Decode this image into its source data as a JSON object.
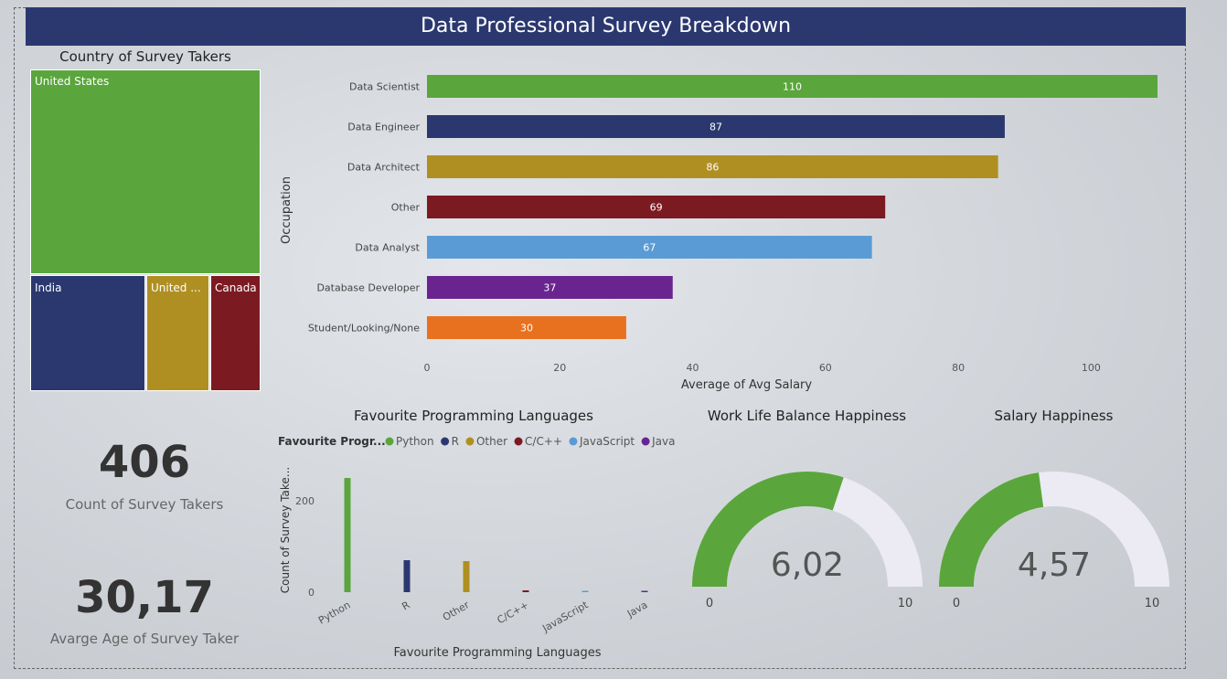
{
  "header": {
    "title": "Data Professional Survey Breakdown"
  },
  "colors": {
    "green": "#5aa63c",
    "navy": "#2b3870",
    "gold": "#b08f22",
    "maroon": "#7c1a22",
    "lightblue": "#5b9bd5",
    "purple": "#6a2490",
    "orange": "#e8711f",
    "gauge_bg": "#eceaf3"
  },
  "treemap": {
    "title": "Country of Survey Takers",
    "items": [
      {
        "label": "United States",
        "color": "#5aa63c"
      },
      {
        "label": "India",
        "color": "#2b3870"
      },
      {
        "label": "United ...",
        "color": "#b08f22"
      },
      {
        "label": "Canada",
        "color": "#7c1a22"
      }
    ]
  },
  "kpis": {
    "count": {
      "value": "406",
      "label": "Count of Survey Takers"
    },
    "age": {
      "value": "30,17",
      "label": "Avarge Age of Survey Taker"
    }
  },
  "chart_data": [
    {
      "type": "bar",
      "orientation": "horizontal",
      "categories": [
        "Data Scientist",
        "Data Engineer",
        "Data Architect",
        "Other",
        "Data Analyst",
        "Database Developer",
        "Student/Looking/None"
      ],
      "values": [
        110,
        87,
        86,
        69,
        67,
        37,
        30
      ],
      "colors": [
        "#5aa63c",
        "#2b3870",
        "#b08f22",
        "#7c1a22",
        "#5b9bd5",
        "#6a2490",
        "#e8711f"
      ],
      "xlabel": "Average of Avg Salary",
      "ylabel": "Occupation",
      "xlim": [
        0,
        110
      ],
      "xticks": [
        0,
        20,
        40,
        60,
        80,
        100
      ]
    },
    {
      "type": "bar",
      "title": "Favourite Programming Languages",
      "legend_title": "Favourite Progr...",
      "categories": [
        "Python",
        "R",
        "Other",
        "C/C++",
        "JavaScript",
        "Java"
      ],
      "values": [
        250,
        70,
        68,
        4,
        2,
        2
      ],
      "colors": [
        "#5aa63c",
        "#2b3870",
        "#b08f22",
        "#7c1a22",
        "#5b9bd5",
        "#6a2490"
      ],
      "xlabel": "Favourite Programming Languages",
      "ylabel": "Count of Survey Take...",
      "ylim": [
        0,
        260
      ],
      "yticks": [
        0,
        200
      ]
    },
    {
      "type": "gauge",
      "title": "Work Life Balance Happiness",
      "value": 6.02,
      "value_label": "6,02",
      "min": 0,
      "max": 10,
      "min_label": "0",
      "max_label": "10"
    },
    {
      "type": "gauge",
      "title": "Salary Happiness",
      "value": 4.57,
      "value_label": "4,57",
      "min": 0,
      "max": 10,
      "min_label": "0",
      "max_label": "10"
    }
  ]
}
